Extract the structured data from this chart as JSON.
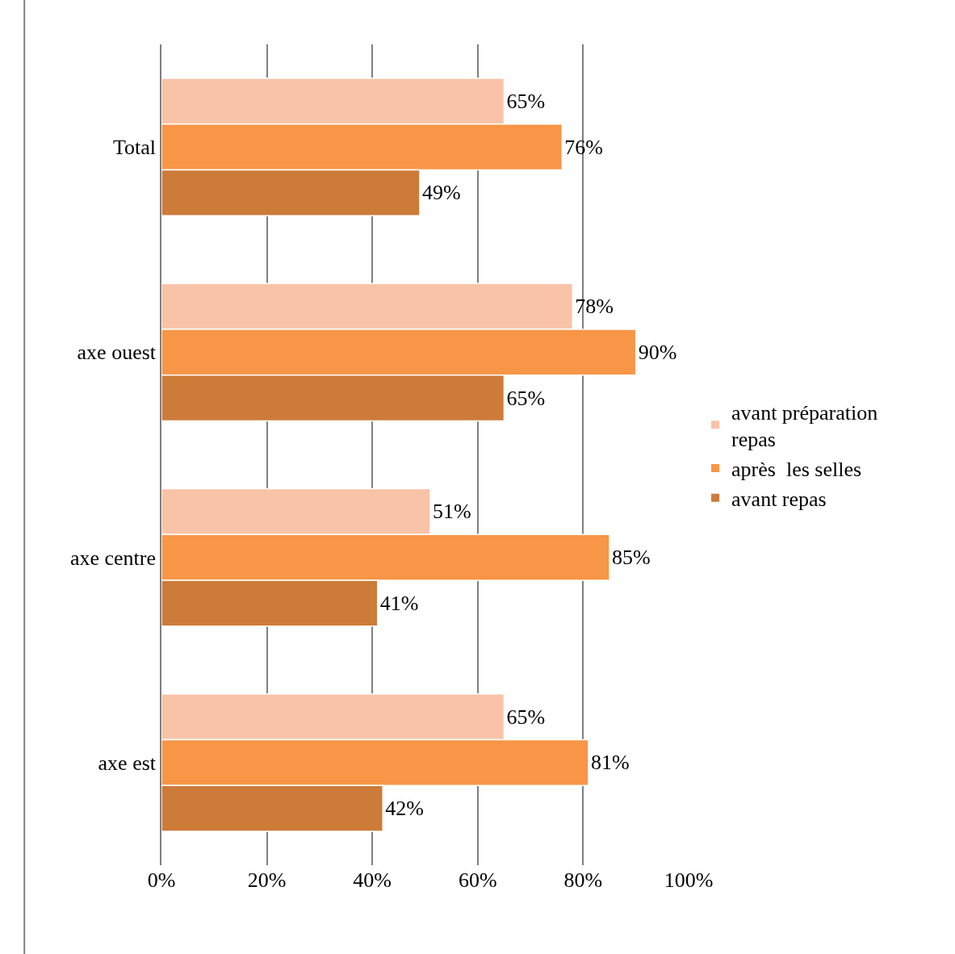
{
  "chart_data": {
    "type": "bar",
    "orientation": "horizontal",
    "categories": [
      "Total",
      "axe ouest",
      "axe centre",
      "axe est"
    ],
    "series": [
      {
        "name": "avant préparation repas",
        "color": "#f9c3a8",
        "values": [
          65,
          78,
          51,
          65
        ],
        "value_labels": [
          "65%",
          "78%",
          "51%",
          "65%"
        ]
      },
      {
        "name": "après  les selles",
        "color": "#f79646",
        "values": [
          76,
          90,
          85,
          81
        ],
        "value_labels": [
          "76%",
          "90%",
          "85%",
          "81%"
        ]
      },
      {
        "name": "avant repas",
        "color": "#cd7b39",
        "values": [
          49,
          65,
          41,
          42
        ],
        "value_labels": [
          "49%",
          "65%",
          "41%",
          "42%"
        ]
      }
    ],
    "xlim": [
      0,
      100
    ],
    "xticks": [
      {
        "value": 0,
        "label": "0%"
      },
      {
        "value": 20,
        "label": "20%"
      },
      {
        "value": 40,
        "label": "40%"
      },
      {
        "value": 60,
        "label": "60%"
      },
      {
        "value": 80,
        "label": "80%"
      },
      {
        "value": 100,
        "label": "100%"
      }
    ],
    "grid": "x",
    "legend": "right"
  }
}
